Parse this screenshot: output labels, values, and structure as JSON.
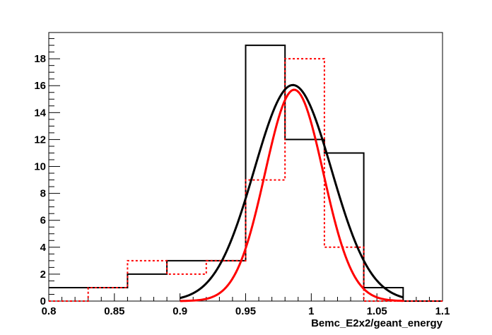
{
  "chart_data": {
    "type": "histogram",
    "title": "",
    "xlabel": "Bemc_E2x2/geant_energy",
    "ylabel": "",
    "xlim": [
      0.8,
      1.1
    ],
    "ylim": [
      0,
      19.95
    ],
    "x_ticks": [
      "0.8",
      "0.85",
      "0.9",
      "0.95",
      "1",
      "1.05",
      "1.1"
    ],
    "y_ticks": [
      "0",
      "2",
      "4",
      "6",
      "8",
      "10",
      "12",
      "14",
      "16",
      "18"
    ],
    "grid": false,
    "legend": "none",
    "series": [
      {
        "style": "solid",
        "color": "#000000",
        "bin_edges": [
          0.8,
          0.83,
          0.86,
          0.89,
          0.92,
          0.95,
          0.98,
          1.01,
          1.04,
          1.07,
          1.1
        ],
        "counts": [
          1,
          1,
          2,
          3,
          3,
          19,
          12,
          11,
          1,
          0
        ]
      },
      {
        "style": "dotted",
        "color": "#ff0000",
        "bin_edges": [
          0.8,
          0.83,
          0.86,
          0.89,
          0.92,
          0.95,
          0.98,
          1.01,
          1.04,
          1.07,
          1.1
        ],
        "counts": [
          0,
          1,
          3,
          2,
          3,
          9,
          18,
          4,
          0,
          0
        ]
      }
    ],
    "fits": [
      {
        "type": "gaussian",
        "color": "#000000",
        "amplitude": 16.05,
        "mean": 0.986,
        "sigma": 0.0295,
        "range": [
          0.9,
          1.07
        ]
      },
      {
        "type": "gaussian",
        "color": "#ff0000",
        "amplitude": 15.7,
        "mean": 0.987,
        "sigma": 0.0222,
        "range": [
          0.9,
          1.07
        ]
      }
    ]
  }
}
